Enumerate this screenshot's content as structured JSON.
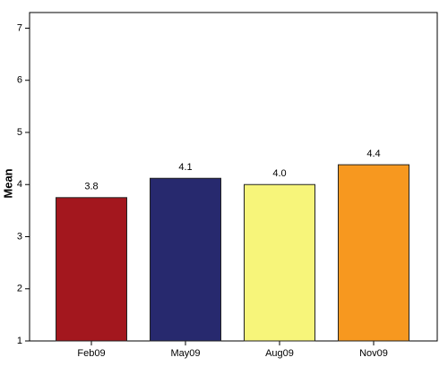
{
  "chart_data": {
    "type": "bar",
    "ylabel": "Mean",
    "categories": [
      "Feb09",
      "May09",
      "Aug09",
      "Nov09"
    ],
    "values": [
      3.75,
      4.12,
      4.0,
      4.38
    ],
    "value_labels": [
      "3.8",
      "4.1",
      "4.0",
      "4.4"
    ],
    "colors": [
      "#a3171e",
      "#27296e",
      "#f7f57a",
      "#f7981f"
    ],
    "ylim": [
      1,
      7.3
    ],
    "yticks": [
      1,
      2,
      3,
      4,
      5,
      6,
      7
    ],
    "grid": false
  }
}
